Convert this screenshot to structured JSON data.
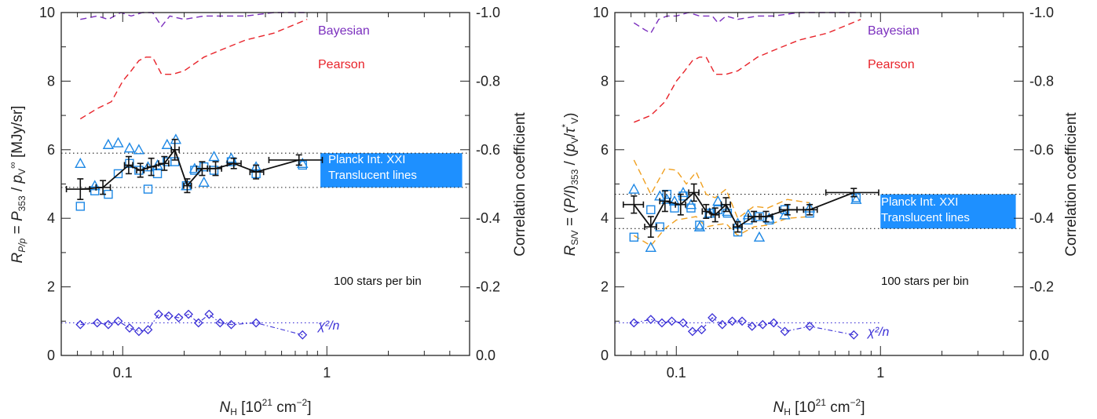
{
  "chart_data": [
    {
      "type": "scatter",
      "id": "left",
      "ylabel": "R_P/p = P_353 / p_V^∞  [MJy/sr]",
      "y2label": "Correlation coefficient",
      "xlabel": "N_H [10^21 cm^-2]",
      "xscale": "log",
      "xlim": [
        0.05,
        5
      ],
      "ylim": [
        0,
        10
      ],
      "y2lim": [
        0.0,
        -1.0
      ],
      "xticks": [
        0.1,
        1
      ],
      "xtick_labels": [
        "0.1",
        "1"
      ],
      "yticks": [
        0,
        2,
        4,
        6,
        8,
        10
      ],
      "ytick_labels": [
        "0",
        "2",
        "4",
        "6",
        "8",
        "10"
      ],
      "y2ticks": [
        0,
        2,
        4,
        6,
        8,
        10
      ],
      "y2tick_labels": [
        "0.0",
        "-0.2",
        "-0.4",
        "-0.6",
        "-0.8",
        "-1.0"
      ],
      "hlines": [
        5.9,
        4.9
      ],
      "chi2_line": 0.95,
      "band": {
        "x": [
          0.93,
          4.6
        ],
        "y": [
          4.9,
          5.9
        ],
        "lines": [
          "Planck Int. XXI",
          "Translucent lines"
        ],
        "color": "#1E90FF"
      },
      "note": "100 stars per bin",
      "legend_bayesian": "Bayesian",
      "legend_pearson": "Pearson",
      "legend_chi2": "χ²/n",
      "binned": {
        "x": [
          0.062,
          0.08,
          0.107,
          0.122,
          0.138,
          0.16,
          0.18,
          0.207,
          0.245,
          0.285,
          0.35,
          0.45,
          0.73
        ],
        "xerr_lo": [
          0.009,
          0.006,
          0.005,
          0.005,
          0.006,
          0.01,
          0.007,
          0.008,
          0.015,
          0.018,
          0.025,
          0.03,
          0.21
        ],
        "xerr_hi": [
          0.007,
          0.007,
          0.005,
          0.005,
          0.008,
          0.008,
          0.009,
          0.01,
          0.015,
          0.02,
          0.03,
          0.04,
          0.22
        ],
        "y": [
          4.85,
          4.9,
          5.55,
          5.4,
          5.5,
          5.6,
          6.0,
          4.95,
          5.45,
          5.45,
          5.6,
          5.35,
          5.7
        ],
        "yerr": [
          0.3,
          0.2,
          0.25,
          0.2,
          0.25,
          0.2,
          0.3,
          0.2,
          0.2,
          0.2,
          0.15,
          0.2,
          0.15
        ]
      },
      "squares": {
        "x": [
          0.062,
          0.073,
          0.085,
          0.095,
          0.108,
          0.12,
          0.133,
          0.148,
          0.165,
          0.18,
          0.205,
          0.225,
          0.25,
          0.28,
          0.34,
          0.45,
          0.76
        ],
        "y": [
          4.35,
          4.8,
          4.7,
          5.3,
          5.6,
          5.4,
          4.85,
          5.3,
          5.65,
          5.65,
          4.95,
          5.4,
          5.5,
          5.4,
          5.65,
          5.3,
          5.55
        ]
      },
      "triangles": {
        "x": [
          0.062,
          0.073,
          0.085,
          0.095,
          0.108,
          0.12,
          0.133,
          0.148,
          0.165,
          0.182,
          0.205,
          0.225,
          0.25,
          0.28,
          0.34,
          0.45,
          0.76
        ],
        "y": [
          5.6,
          4.95,
          6.15,
          6.2,
          6.05,
          6.0,
          5.5,
          5.55,
          6.15,
          6.3,
          4.95,
          5.45,
          5.05,
          5.8,
          5.75,
          5.5,
          5.6
        ]
      },
      "chi2": {
        "x": [
          0.062,
          0.075,
          0.085,
          0.095,
          0.108,
          0.12,
          0.133,
          0.15,
          0.168,
          0.188,
          0.21,
          0.235,
          0.265,
          0.3,
          0.34,
          0.45,
          0.76
        ],
        "y": [
          0.9,
          0.95,
          0.9,
          1.0,
          0.8,
          0.7,
          0.75,
          1.2,
          1.15,
          1.1,
          1.2,
          0.95,
          1.2,
          0.95,
          0.9,
          0.95,
          0.6
        ]
      },
      "bayesian": {
        "x": [
          0.062,
          0.075,
          0.085,
          0.098,
          0.11,
          0.125,
          0.14,
          0.155,
          0.17,
          0.2,
          0.25,
          0.3,
          0.4,
          0.55,
          0.8
        ],
        "y": [
          0.98,
          0.99,
          0.98,
          1.0,
          0.99,
          1.0,
          1.0,
          0.96,
          0.99,
          0.98,
          0.99,
          0.99,
          0.99,
          1.0,
          1.0
        ]
      },
      "pearson": {
        "x": [
          0.062,
          0.075,
          0.088,
          0.1,
          0.11,
          0.12,
          0.13,
          0.14,
          0.155,
          0.175,
          0.2,
          0.25,
          0.3,
          0.4,
          0.55,
          0.8
        ],
        "y": [
          0.69,
          0.72,
          0.74,
          0.8,
          0.83,
          0.86,
          0.87,
          0.87,
          0.82,
          0.82,
          0.83,
          0.87,
          0.89,
          0.92,
          0.94,
          0.98
        ]
      }
    },
    {
      "type": "scatter",
      "id": "right",
      "ylabel": "R_S/V = (P/I)_353 / (p_V/τ*_V)",
      "y2label": "Correlation coefficient",
      "xlabel": "N_H [10^21 cm^-2]",
      "xscale": "log",
      "xlim": [
        0.05,
        5
      ],
      "ylim": [
        0,
        10
      ],
      "y2lim": [
        0.0,
        -1.0
      ],
      "xticks": [
        0.1,
        1
      ],
      "xtick_labels": [
        "0.1",
        "1"
      ],
      "yticks": [
        0,
        2,
        4,
        6,
        8,
        10
      ],
      "ytick_labels": [
        "0",
        "2",
        "4",
        "6",
        "8",
        "10"
      ],
      "y2ticks": [
        0,
        2,
        4,
        6,
        8,
        10
      ],
      "y2tick_labels": [
        "0.0",
        "-0.2",
        "-0.4",
        "-0.6",
        "-0.8",
        "-1.0"
      ],
      "hlines": [
        4.7,
        3.7
      ],
      "chi2_line": 0.95,
      "band": {
        "x": [
          1.0,
          4.6
        ],
        "y": [
          3.7,
          4.7
        ],
        "lines": [
          "Planck Int. XXI",
          "Translucent lines"
        ],
        "color": "#1E90FF"
      },
      "note": "100 stars per bin",
      "legend_bayesian": "Bayesian",
      "legend_pearson": "Pearson",
      "legend_chi2": "χ²/n",
      "binned": {
        "x": [
          0.062,
          0.075,
          0.088,
          0.105,
          0.122,
          0.14,
          0.155,
          0.175,
          0.2,
          0.24,
          0.275,
          0.35,
          0.45,
          0.74
        ],
        "xerr_lo": [
          0.007,
          0.005,
          0.005,
          0.006,
          0.007,
          0.006,
          0.007,
          0.009,
          0.01,
          0.015,
          0.015,
          0.03,
          0.03,
          0.2
        ],
        "xerr_hi": [
          0.007,
          0.005,
          0.005,
          0.006,
          0.007,
          0.006,
          0.007,
          0.009,
          0.01,
          0.015,
          0.02,
          0.04,
          0.04,
          0.24
        ],
        "y": [
          4.4,
          3.75,
          4.5,
          4.4,
          4.75,
          4.2,
          4.1,
          4.4,
          3.75,
          4.05,
          4.05,
          4.25,
          4.25,
          4.75
        ],
        "yerr": [
          0.25,
          0.3,
          0.3,
          0.3,
          0.25,
          0.2,
          0.2,
          0.2,
          0.15,
          0.15,
          0.15,
          0.15,
          0.15,
          0.12
        ]
      },
      "squares": {
        "x": [
          0.062,
          0.075,
          0.083,
          0.09,
          0.098,
          0.108,
          0.118,
          0.13,
          0.145,
          0.16,
          0.178,
          0.2,
          0.225,
          0.255,
          0.285,
          0.34,
          0.45,
          0.76
        ],
        "y": [
          3.45,
          4.25,
          3.75,
          4.7,
          4.3,
          4.65,
          4.3,
          3.8,
          4.15,
          4.25,
          4.15,
          3.6,
          3.95,
          4.05,
          3.95,
          4.25,
          4.15,
          4.6
        ]
      },
      "triangles": {
        "x": [
          0.062,
          0.075,
          0.083,
          0.09,
          0.098,
          0.108,
          0.118,
          0.13,
          0.145,
          0.16,
          0.178,
          0.2,
          0.225,
          0.255,
          0.285,
          0.34,
          0.45,
          0.76
        ],
        "y": [
          4.85,
          3.15,
          4.65,
          4.55,
          4.5,
          4.75,
          4.4,
          3.75,
          4.15,
          4.5,
          4.2,
          3.85,
          4.1,
          3.45,
          4.0,
          4.1,
          4.3,
          4.55
        ]
      },
      "orange_upper": {
        "x": [
          0.062,
          0.075,
          0.088,
          0.1,
          0.112,
          0.125,
          0.14,
          0.155,
          0.175,
          0.2,
          0.24,
          0.28,
          0.35,
          0.45
        ],
        "y": [
          5.7,
          4.7,
          5.45,
          5.4,
          5.0,
          5.35,
          4.7,
          4.6,
          4.85,
          4.0,
          4.35,
          4.3,
          4.55,
          4.45
        ]
      },
      "orange_lower": {
        "x": [
          0.062,
          0.075,
          0.088,
          0.1,
          0.112,
          0.125,
          0.14,
          0.155,
          0.175,
          0.2,
          0.24,
          0.28,
          0.35,
          0.45
        ],
        "y": [
          3.5,
          3.2,
          3.7,
          3.95,
          4.0,
          4.05,
          3.75,
          3.8,
          3.85,
          3.5,
          3.75,
          3.8,
          4.0,
          4.05
        ]
      },
      "chi2": {
        "x": [
          0.062,
          0.075,
          0.085,
          0.095,
          0.108,
          0.12,
          0.133,
          0.15,
          0.168,
          0.188,
          0.21,
          0.235,
          0.265,
          0.3,
          0.34,
          0.45,
          0.74
        ],
        "y": [
          0.95,
          1.05,
          0.95,
          1.0,
          0.95,
          0.7,
          0.75,
          1.1,
          0.9,
          1.0,
          1.0,
          0.85,
          0.9,
          0.95,
          0.7,
          0.85,
          0.6
        ]
      },
      "bayesian": {
        "x": [
          0.062,
          0.07,
          0.075,
          0.082,
          0.09,
          0.1,
          0.115,
          0.13,
          0.15,
          0.16,
          0.175,
          0.2,
          0.25,
          0.3,
          0.4,
          0.55,
          0.8
        ],
        "y": [
          0.97,
          0.95,
          0.94,
          0.98,
          0.99,
          0.99,
          1.0,
          0.99,
          0.99,
          0.97,
          0.99,
          0.98,
          0.99,
          0.99,
          1.0,
          1.0,
          1.0
        ]
      },
      "pearson": {
        "x": [
          0.062,
          0.075,
          0.088,
          0.1,
          0.11,
          0.12,
          0.13,
          0.14,
          0.155,
          0.175,
          0.2,
          0.25,
          0.3,
          0.4,
          0.55,
          0.8
        ],
        "y": [
          0.68,
          0.7,
          0.74,
          0.8,
          0.83,
          0.86,
          0.87,
          0.87,
          0.82,
          0.82,
          0.83,
          0.87,
          0.89,
          0.92,
          0.94,
          0.98
        ]
      }
    }
  ]
}
